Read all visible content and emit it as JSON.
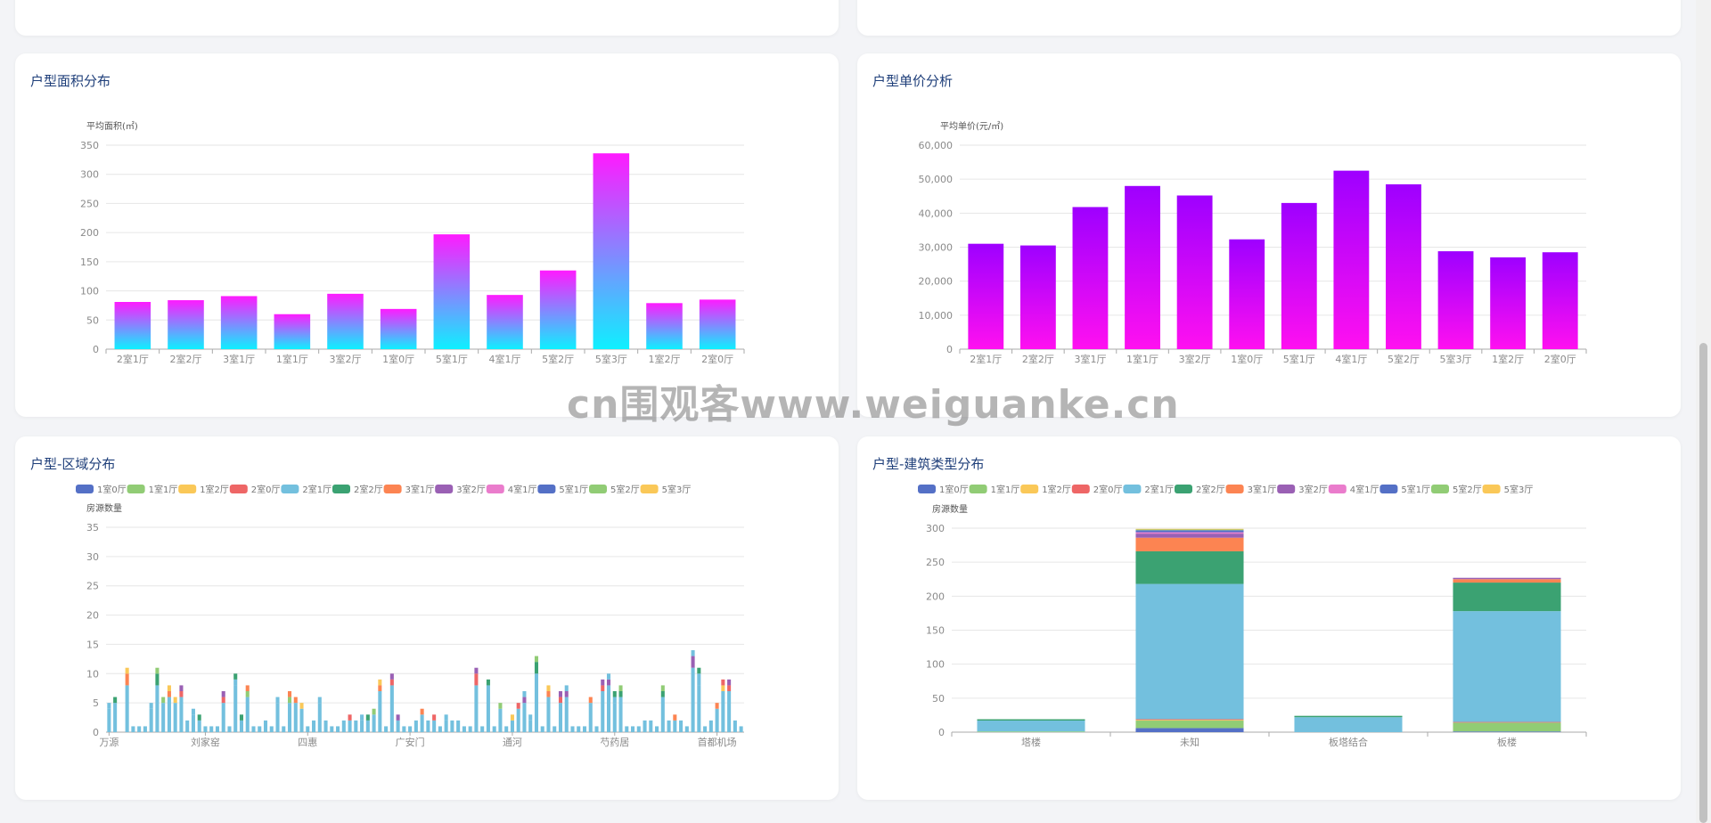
{
  "page": {
    "watermark": "cn围观客www.weiguanke.cn",
    "colors": {
      "background": "#f3f4f7",
      "card": "#ffffff",
      "title": "#1f3f7a"
    }
  },
  "panels": {
    "area": {
      "title": "户型面积分布"
    },
    "price": {
      "title": "户型单价分析"
    },
    "district": {
      "title": "户型-区域分布"
    },
    "building": {
      "title": "户型-建筑类型分布"
    }
  },
  "chart_data": [
    {
      "id": "area",
      "type": "bar",
      "title": "户型面积分布",
      "ylabel": "平均面积(㎡)",
      "ylim": [
        0,
        350
      ],
      "yticks": [
        0,
        50,
        100,
        150,
        200,
        250,
        300,
        350
      ],
      "grid": true,
      "categories": [
        "2室1厅",
        "2室2厅",
        "3室1厅",
        "1室1厅",
        "3室2厅",
        "1室0厅",
        "5室1厅",
        "4室1厅",
        "5室2厅",
        "5室3厅",
        "1室2厅",
        "2室0厅"
      ],
      "values": [
        81,
        84,
        91,
        60,
        95,
        69,
        197,
        93,
        135,
        336,
        79,
        85
      ],
      "gradient": [
        "#0ef0ff",
        "#ff1aff"
      ]
    },
    {
      "id": "price",
      "type": "bar",
      "title": "户型单价分析",
      "ylabel": "平均单价(元/㎡)",
      "ylim": [
        0,
        60000
      ],
      "yticks": [
        0,
        10000,
        20000,
        30000,
        40000,
        50000,
        60000
      ],
      "ytick_labels": [
        "0",
        "10,000",
        "20,000",
        "30,000",
        "40,000",
        "50,000",
        "60,000"
      ],
      "grid": true,
      "categories": [
        "2室1厅",
        "2室2厅",
        "3室1厅",
        "1室1厅",
        "3室2厅",
        "1室0厅",
        "5室1厅",
        "4室1厅",
        "5室2厅",
        "5室3厅",
        "1室2厅",
        "2室0厅"
      ],
      "values": [
        31000,
        30500,
        41800,
        48000,
        45200,
        32300,
        43000,
        52500,
        48500,
        28800,
        27000,
        28500
      ],
      "gradient": [
        "#ff10f0",
        "#9e00ff"
      ]
    },
    {
      "id": "district",
      "type": "bar",
      "stacked": true,
      "title": "户型-区域分布",
      "ylabel": "房源数量",
      "ylim": [
        0,
        35
      ],
      "yticks": [
        0,
        5,
        10,
        15,
        20,
        25,
        30,
        35
      ],
      "grid": true,
      "legend": {
        "placement": "top",
        "entries": [
          "1室0厅",
          "1室1厅",
          "1室2厅",
          "2室0厅",
          "2室1厅",
          "2室2厅",
          "3室1厅",
          "3室2厅",
          "4室1厅",
          "5室1厅",
          "5室2厅",
          "5室3厅"
        ]
      },
      "series_colors": [
        "#5470c6",
        "#91cc75",
        "#fac858",
        "#ee6666",
        "#73c0de",
        "#3ba272",
        "#fc8452",
        "#9a60b4",
        "#ea7ccc",
        "#5470c6",
        "#91cc75",
        "#fac858"
      ],
      "x_tick_labels": [
        "万源",
        "刘家窑",
        "四惠",
        "广安门",
        "通河",
        "芍药居",
        "首都机场"
      ],
      "x_tick_label_index": [
        0,
        16,
        33,
        50,
        67,
        84,
        101
      ],
      "num_categories": 106,
      "totals": [
        5,
        6,
        0,
        11,
        1,
        1,
        1,
        5,
        11,
        6,
        8,
        6,
        8,
        2,
        4,
        3,
        1,
        1,
        1,
        7,
        1,
        10,
        3,
        8,
        1,
        1,
        2,
        1,
        6,
        1,
        7,
        6,
        5,
        1,
        2,
        6,
        2,
        1,
        1,
        2,
        3,
        2,
        3,
        3,
        4,
        9,
        1,
        10,
        3,
        1,
        1,
        2,
        4,
        2,
        3,
        1,
        3,
        2,
        2,
        1,
        1,
        11,
        1,
        9,
        1,
        5,
        1,
        3,
        5,
        7,
        3,
        13,
        1,
        8,
        1,
        7,
        8,
        1,
        1,
        1,
        6,
        1,
        9,
        10,
        7,
        8,
        1,
        1,
        1,
        2,
        2,
        1,
        8,
        2,
        3,
        2,
        1,
        14,
        11,
        1,
        2,
        5,
        9,
        9,
        2,
        1
      ],
      "breakdown_hint": "bars composed mostly of 2室1厅 and 2室2厅 with occasional 1室1厅, 3室1厅, 3室2厅, 2室0厅"
    },
    {
      "id": "building",
      "type": "bar",
      "stacked": true,
      "title": "户型-建筑类型分布",
      "ylabel": "房源数量",
      "ylim": [
        0,
        300
      ],
      "yticks": [
        0,
        50,
        100,
        150,
        200,
        250,
        300
      ],
      "grid": true,
      "legend": {
        "placement": "top",
        "entries": [
          "1室0厅",
          "1室1厅",
          "1室2厅",
          "2室0厅",
          "2室1厅",
          "2室2厅",
          "3室1厅",
          "3室2厅",
          "4室1厅",
          "5室1厅",
          "5室2厅",
          "5室3厅"
        ]
      },
      "categories": [
        "塔楼",
        "未知",
        "板塔结合",
        "板楼"
      ],
      "series": [
        {
          "name": "1室0厅",
          "color": "#5470c6",
          "values": [
            0,
            6,
            0,
            1
          ]
        },
        {
          "name": "1室1厅",
          "color": "#91cc75",
          "values": [
            1,
            11,
            0,
            13
          ]
        },
        {
          "name": "1室2厅",
          "color": "#fac858",
          "values": [
            0,
            1,
            0,
            0
          ]
        },
        {
          "name": "2室0厅",
          "color": "#ee6666",
          "values": [
            0,
            1,
            0,
            1
          ]
        },
        {
          "name": "2室1厅",
          "color": "#73c0de",
          "values": [
            16,
            199,
            22,
            163
          ]
        },
        {
          "name": "2室2厅",
          "color": "#3ba272",
          "values": [
            2,
            48,
            2,
            42
          ]
        },
        {
          "name": "3室1厅",
          "color": "#fc8452",
          "values": [
            0,
            20,
            0,
            5
          ]
        },
        {
          "name": "3室2厅",
          "color": "#9a60b4",
          "values": [
            0,
            6,
            0,
            2
          ]
        },
        {
          "name": "4室1厅",
          "color": "#ea7ccc",
          "values": [
            0,
            2,
            0,
            0
          ]
        },
        {
          "name": "5室1厅",
          "color": "#5470c6",
          "values": [
            0,
            3,
            0,
            0
          ]
        },
        {
          "name": "5室2厅",
          "color": "#91cc75",
          "values": [
            0,
            1,
            0,
            0
          ]
        },
        {
          "name": "5室3厅",
          "color": "#fac858",
          "values": [
            0,
            1,
            0,
            0
          ]
        }
      ]
    }
  ]
}
